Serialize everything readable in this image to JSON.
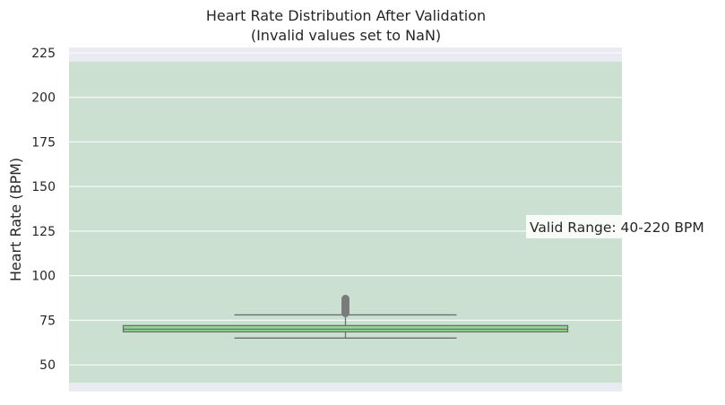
{
  "chart_data": {
    "type": "box",
    "title": "Heart Rate Distribution After Validation",
    "subtitle": "(Invalid values set to NaN)",
    "xlabel": "",
    "ylabel": "Heart Rate (BPM)",
    "ylim": [
      35,
      228
    ],
    "yticks": [
      50,
      75,
      100,
      125,
      150,
      175,
      200,
      225
    ],
    "grid": true,
    "valid_range": {
      "low": 40,
      "high": 220,
      "label": "Valid Range: 40-220 BPM",
      "color": "#c2dcc7"
    },
    "box": {
      "q1": 68.5,
      "median": 70,
      "q3": 72,
      "whisker_low": 65,
      "whisker_high": 78,
      "outliers": [
        79,
        80,
        81,
        82,
        83,
        84,
        85,
        86,
        87
      ],
      "fill_color": "#90d890",
      "line_color": "#6e6e6e"
    },
    "colors": {
      "plot_background": "#eaeaf2",
      "grid": "#ffffff",
      "text": "#262626"
    }
  }
}
